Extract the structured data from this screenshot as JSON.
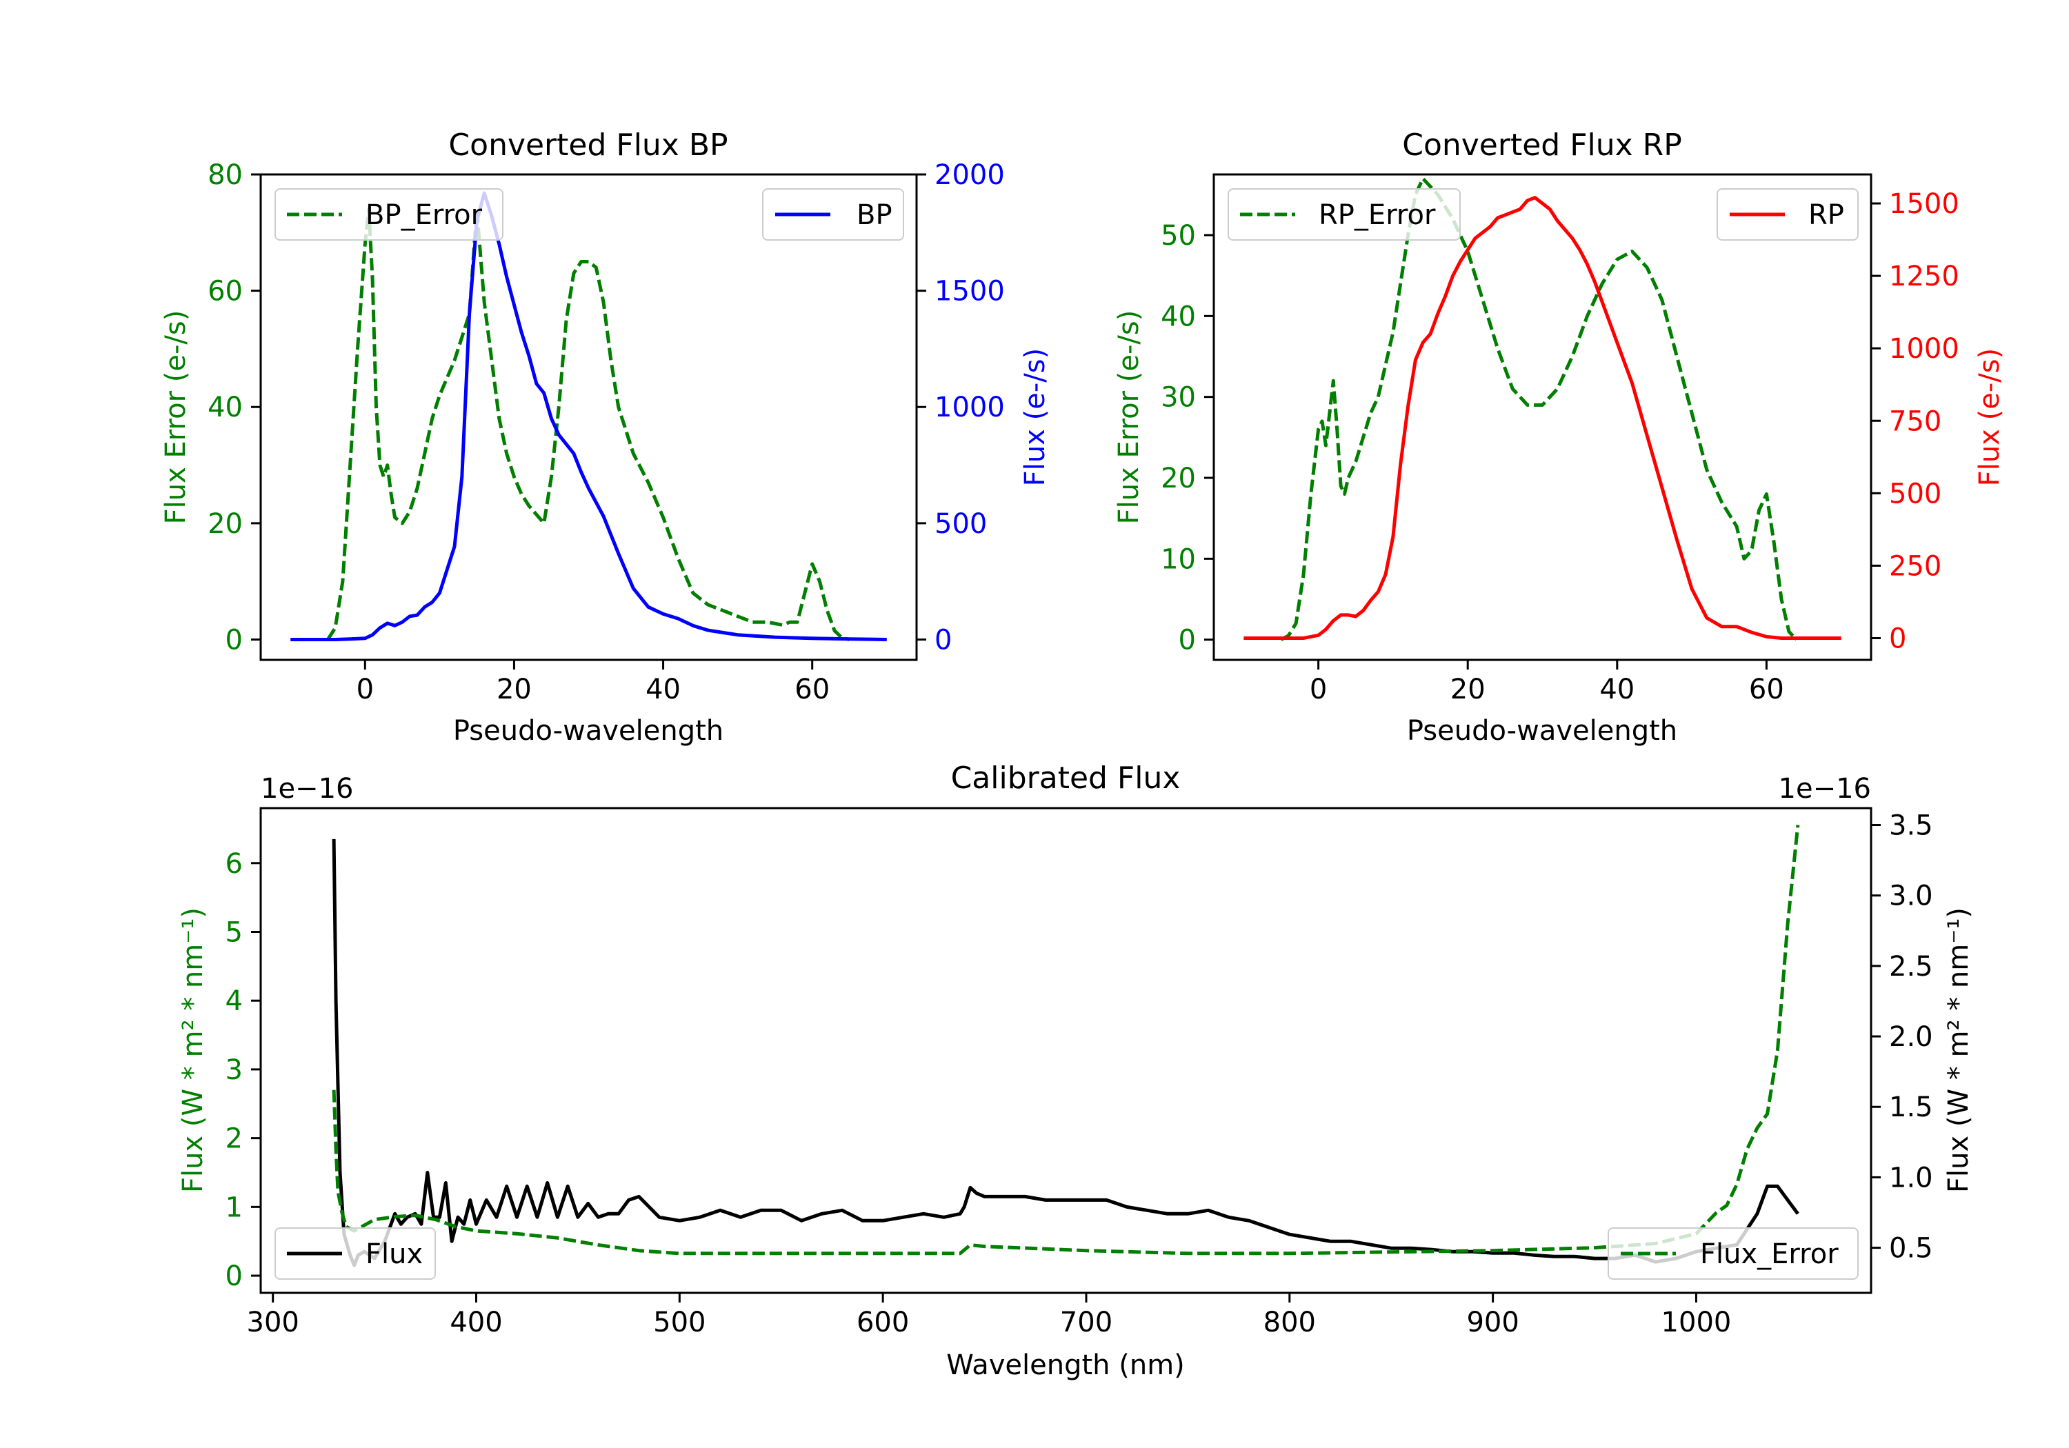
{
  "colors": {
    "green": "#007f00",
    "blue": "#0000ff",
    "red": "#ff0000",
    "black": "#000000"
  },
  "chart_data": [
    {
      "type": "line",
      "title": "Converted Flux BP",
      "xlabel": "Pseudo-wavelength",
      "ylabel_left": "Flux Error (e-/s)",
      "ylabel_right": "Flux (e-/s)",
      "xlim": [
        -14,
        74
      ],
      "ylim_left": [
        -3.5,
        80
      ],
      "ylim_right": [
        -87.5,
        2000
      ],
      "xticks": [
        0,
        20,
        40,
        60
      ],
      "xtick_labels": [
        "0",
        "20",
        "40",
        "60"
      ],
      "yticks_left": [
        0,
        20,
        40,
        60,
        80
      ],
      "ytick_labels_left": [
        "0",
        "20",
        "40",
        "60",
        "80"
      ],
      "yticks_right": [
        0,
        500,
        1000,
        1500,
        2000
      ],
      "ytick_labels_right": [
        "0",
        "500",
        "1000",
        "1500",
        "2000"
      ],
      "legend_left": "BP_Error",
      "legend_right": "BP",
      "series": [
        {
          "name": "BP_Error",
          "axis": "left",
          "style": "dashed",
          "color": "green",
          "x": [
            -5,
            -4,
            -3,
            -2,
            -1,
            0,
            0.5,
            1,
            1.5,
            2,
            2.5,
            3,
            3.5,
            4,
            5,
            6,
            7,
            8,
            9,
            10,
            12,
            14,
            15,
            16,
            17,
            18,
            19,
            20,
            21,
            22,
            24,
            25,
            26,
            27,
            28,
            29,
            30,
            31,
            32,
            33,
            34,
            36,
            38,
            40,
            42,
            44,
            46,
            48,
            50,
            52,
            54,
            56,
            57,
            58,
            59,
            60,
            61,
            62,
            63,
            64,
            65
          ],
          "y": [
            0,
            2,
            10,
            30,
            50,
            68,
            74,
            62,
            40,
            30,
            28,
            30,
            25,
            21,
            20,
            22,
            26,
            32,
            38,
            42,
            48,
            56,
            74,
            58,
            48,
            38,
            32,
            28,
            25,
            23,
            20,
            28,
            40,
            55,
            63,
            65,
            65,
            64,
            58,
            48,
            40,
            32,
            27,
            21,
            14,
            8,
            6,
            5,
            4,
            3,
            3,
            2.5,
            3,
            3,
            8,
            13,
            10,
            5,
            1.5,
            0.3,
            0
          ]
        },
        {
          "name": "BP",
          "axis": "right",
          "style": "solid",
          "color": "blue",
          "x": [
            -10,
            -6,
            -4,
            -2,
            0,
            1,
            2,
            3,
            4,
            5,
            6,
            7,
            8,
            9,
            10,
            11,
            12,
            13,
            14,
            15,
            16,
            17,
            18,
            19,
            20,
            21,
            22,
            23,
            24,
            25,
            26,
            27,
            28,
            29,
            30,
            32,
            34,
            36,
            38,
            40,
            42,
            44,
            46,
            48,
            50,
            55,
            60,
            65,
            70
          ],
          "y": [
            0,
            0,
            0,
            2,
            5,
            20,
            50,
            70,
            60,
            75,
            100,
            105,
            140,
            160,
            200,
            300,
            400,
            700,
            1400,
            1800,
            1920,
            1820,
            1700,
            1560,
            1440,
            1320,
            1220,
            1100,
            1060,
            950,
            880,
            840,
            800,
            720,
            650,
            530,
            370,
            220,
            140,
            110,
            90,
            60,
            40,
            30,
            20,
            10,
            5,
            2,
            0
          ]
        }
      ]
    },
    {
      "type": "line",
      "title": "Converted Flux RP",
      "xlabel": "Pseudo-wavelength",
      "ylabel_left": "Flux Error (e-/s)",
      "ylabel_right": "Flux (e-/s)",
      "xlim": [
        -14,
        74
      ],
      "ylim_left": [
        -2.5,
        57.5
      ],
      "ylim_right": [
        -75,
        1600
      ],
      "xticks": [
        0,
        20,
        40,
        60
      ],
      "xtick_labels": [
        "0",
        "20",
        "40",
        "60"
      ],
      "yticks_left": [
        0,
        10,
        20,
        30,
        40,
        50
      ],
      "ytick_labels_left": [
        "0",
        "10",
        "20",
        "30",
        "40",
        "50"
      ],
      "yticks_right": [
        0,
        250,
        500,
        750,
        1000,
        1250,
        1500
      ],
      "ytick_labels_right": [
        "0",
        "250",
        "500",
        "750",
        "1000",
        "1250",
        "1500"
      ],
      "legend_left": "RP_Error",
      "legend_right": "RP",
      "series": [
        {
          "name": "RP_Error",
          "axis": "left",
          "style": "dashed",
          "color": "green",
          "x": [
            -5,
            -4,
            -3,
            -2,
            -1,
            0,
            0.5,
            1,
            1.5,
            2,
            2.5,
            3,
            3.5,
            4,
            5,
            6,
            7,
            8,
            9,
            10,
            11,
            12,
            13,
            14,
            16,
            18,
            20,
            22,
            24,
            26,
            28,
            30,
            32,
            34,
            36,
            38,
            40,
            42,
            44,
            46,
            48,
            50,
            52,
            54,
            56,
            57,
            58,
            59,
            60,
            61,
            62,
            63,
            64
          ],
          "y": [
            0,
            0.5,
            2,
            8,
            18,
            26,
            27,
            24,
            28,
            32,
            26,
            19,
            18,
            20,
            22,
            25,
            28,
            30,
            34,
            38,
            44,
            50,
            55,
            57,
            55,
            52,
            48,
            42,
            36,
            31,
            29,
            29,
            31,
            35,
            40,
            44,
            47,
            48,
            46,
            42,
            35,
            28,
            21,
            17,
            14,
            10,
            11,
            16,
            18,
            12,
            5,
            1,
            0
          ]
        },
        {
          "name": "RP",
          "axis": "right",
          "style": "solid",
          "color": "red",
          "x": [
            -10,
            -5,
            -2,
            0,
            1,
            2,
            3,
            4,
            5,
            6,
            7,
            8,
            9,
            10,
            11,
            12,
            13,
            14,
            15,
            16,
            17,
            18,
            19,
            20,
            21,
            22,
            23,
            24,
            25,
            26,
            27,
            28,
            29,
            30,
            31,
            32,
            33,
            34,
            35,
            36,
            37,
            38,
            39,
            40,
            42,
            44,
            46,
            48,
            50,
            52,
            54,
            56,
            58,
            60,
            62,
            65,
            70
          ],
          "y": [
            0,
            0,
            0,
            10,
            30,
            60,
            80,
            80,
            75,
            95,
            130,
            160,
            220,
            350,
            600,
            800,
            960,
            1020,
            1050,
            1120,
            1180,
            1250,
            1300,
            1340,
            1380,
            1400,
            1420,
            1450,
            1460,
            1470,
            1480,
            1510,
            1520,
            1500,
            1480,
            1440,
            1410,
            1380,
            1340,
            1290,
            1230,
            1160,
            1090,
            1020,
            880,
            700,
            520,
            340,
            170,
            70,
            40,
            40,
            20,
            5,
            0,
            0,
            0
          ]
        }
      ]
    },
    {
      "type": "line",
      "title": "Calibrated Flux",
      "xlabel": "Wavelength (nm)",
      "ylabel_left": "Flux (W * m² * nm⁻¹)",
      "ylabel_right": "Flux (W * m² * nm⁻¹)",
      "offset_left": "1e−16",
      "offset_right": "1e−16",
      "xlim": [
        294,
        1086
      ],
      "ylim_left": [
        -0.25,
        6.8
      ],
      "ylim_right": [
        0.18,
        3.62
      ],
      "xticks": [
        300,
        400,
        500,
        600,
        700,
        800,
        900,
        1000
      ],
      "xtick_labels": [
        "300",
        "400",
        "500",
        "600",
        "700",
        "800",
        "900",
        "1000"
      ],
      "yticks_left": [
        0,
        1,
        2,
        3,
        4,
        5,
        6
      ],
      "ytick_labels_left": [
        "0",
        "1",
        "2",
        "3",
        "4",
        "5",
        "6"
      ],
      "yticks_right": [
        0.5,
        1.0,
        1.5,
        2.0,
        2.5,
        3.0,
        3.5
      ],
      "ytick_labels_right": [
        "0.5",
        "1.0",
        "1.5",
        "2.0",
        "2.5",
        "3.0",
        "3.5"
      ],
      "legend_left": "Flux",
      "legend_right": "Flux_Error",
      "series": [
        {
          "name": "Flux",
          "axis": "left",
          "style": "solid",
          "color": "black",
          "x": [
            330,
            331,
            333,
            335,
            338,
            340,
            342,
            345,
            350,
            355,
            360,
            363,
            366,
            370,
            373,
            376,
            379,
            382,
            385,
            388,
            391,
            394,
            397,
            400,
            405,
            410,
            415,
            420,
            425,
            430,
            435,
            440,
            445,
            450,
            455,
            460,
            465,
            470,
            475,
            480,
            490,
            500,
            510,
            520,
            530,
            540,
            550,
            560,
            570,
            580,
            590,
            600,
            610,
            620,
            630,
            638,
            640,
            643,
            646,
            650,
            660,
            670,
            680,
            690,
            700,
            710,
            720,
            730,
            740,
            750,
            760,
            770,
            780,
            790,
            800,
            810,
            820,
            830,
            840,
            850,
            860,
            870,
            880,
            890,
            900,
            910,
            920,
            930,
            940,
            950,
            960,
            970,
            980,
            990,
            1000,
            1010,
            1020,
            1030,
            1035,
            1040,
            1045,
            1050
          ],
          "y": [
            6.35,
            4.0,
            1.5,
            0.6,
            0.3,
            0.15,
            0.3,
            0.35,
            0.25,
            0.5,
            0.9,
            0.75,
            0.85,
            0.9,
            0.75,
            1.5,
            0.85,
            0.85,
            1.35,
            0.5,
            0.85,
            0.75,
            1.1,
            0.75,
            1.1,
            0.85,
            1.3,
            0.85,
            1.3,
            0.85,
            1.35,
            0.85,
            1.3,
            0.85,
            1.05,
            0.85,
            0.9,
            0.9,
            1.1,
            1.15,
            0.85,
            0.8,
            0.85,
            0.95,
            0.85,
            0.95,
            0.95,
            0.8,
            0.9,
            0.95,
            0.8,
            0.8,
            0.85,
            0.9,
            0.85,
            0.9,
            1.0,
            1.28,
            1.2,
            1.15,
            1.15,
            1.15,
            1.1,
            1.1,
            1.1,
            1.1,
            1.0,
            0.95,
            0.9,
            0.9,
            0.95,
            0.85,
            0.8,
            0.7,
            0.6,
            0.55,
            0.5,
            0.5,
            0.45,
            0.4,
            0.4,
            0.38,
            0.35,
            0.35,
            0.33,
            0.33,
            0.3,
            0.28,
            0.28,
            0.25,
            0.25,
            0.3,
            0.2,
            0.25,
            0.35,
            0.4,
            0.45,
            0.9,
            1.3,
            1.3,
            1.1,
            0.9
          ]
        },
        {
          "name": "Flux_Error",
          "axis": "right",
          "style": "dashed",
          "color": "green",
          "x": [
            330,
            331,
            332,
            334,
            336,
            340,
            345,
            350,
            360,
            370,
            380,
            390,
            400,
            420,
            440,
            460,
            480,
            500,
            550,
            600,
            620,
            638,
            643,
            650,
            700,
            750,
            800,
            850,
            900,
            950,
            980,
            1000,
            1010,
            1015,
            1020,
            1025,
            1030,
            1035,
            1040,
            1045,
            1050
          ],
          "y": [
            1.62,
            1.2,
            0.9,
            0.75,
            0.65,
            0.62,
            0.66,
            0.7,
            0.72,
            0.73,
            0.7,
            0.65,
            0.62,
            0.6,
            0.57,
            0.52,
            0.48,
            0.46,
            0.46,
            0.46,
            0.46,
            0.46,
            0.52,
            0.51,
            0.48,
            0.46,
            0.46,
            0.47,
            0.48,
            0.5,
            0.53,
            0.6,
            0.75,
            0.8,
            0.95,
            1.2,
            1.35,
            1.45,
            1.9,
            2.8,
            3.5
          ]
        }
      ]
    }
  ]
}
